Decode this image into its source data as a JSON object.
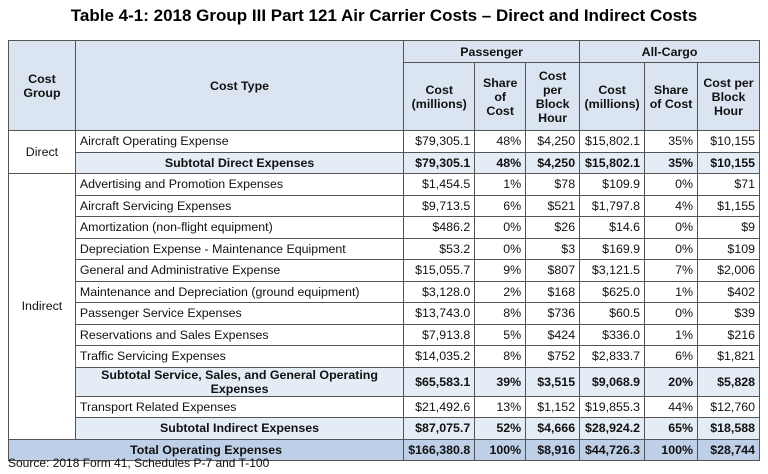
{
  "title": "Table 4-1: 2018 Group III Part 121 Air Carrier Costs – Direct and Indirect Costs",
  "headers": {
    "cost_group": "Cost Group",
    "cost_type": "Cost Type",
    "passenger": "Passenger",
    "all_cargo": "All-Cargo",
    "cost": "Cost (millions)",
    "share": "Share of Cost",
    "cpbh": "Cost per Block Hour"
  },
  "groups": {
    "direct": "Direct",
    "indirect": "Indirect"
  },
  "rows": [
    {
      "type": "Aircraft Operating Expense",
      "v": [
        "$79,305.1",
        "48%",
        "$4,250",
        "$15,802.1",
        "35%",
        "$10,155"
      ]
    },
    {
      "type": "Subtotal Direct Expenses",
      "v": [
        "$79,305.1",
        "48%",
        "$4,250",
        "$15,802.1",
        "35%",
        "$10,155"
      ]
    },
    {
      "type": "Advertising and Promotion Expenses",
      "v": [
        "$1,454.5",
        "1%",
        "$78",
        "$109.9",
        "0%",
        "$71"
      ]
    },
    {
      "type": "Aircraft Servicing Expenses",
      "v": [
        "$9,713.5",
        "6%",
        "$521",
        "$1,797.8",
        "4%",
        "$1,155"
      ]
    },
    {
      "type": "Amortization (non-flight equipment)",
      "v": [
        "$486.2",
        "0%",
        "$26",
        "$14.6",
        "0%",
        "$9"
      ]
    },
    {
      "type": "Depreciation Expense - Maintenance Equipment",
      "v": [
        "$53.2",
        "0%",
        "$3",
        "$169.9",
        "0%",
        "$109"
      ]
    },
    {
      "type": "General and Administrative Expense",
      "v": [
        "$15,055.7",
        "9%",
        "$807",
        "$3,121.5",
        "7%",
        "$2,006"
      ]
    },
    {
      "type": "Maintenance and Depreciation (ground equipment)",
      "v": [
        "$3,128.0",
        "2%",
        "$168",
        "$625.0",
        "1%",
        "$402"
      ]
    },
    {
      "type": "Passenger Service Expenses",
      "v": [
        "$13,743.0",
        "8%",
        "$736",
        "$60.5",
        "0%",
        "$39"
      ]
    },
    {
      "type": "Reservations and Sales Expenses",
      "v": [
        "$7,913.8",
        "5%",
        "$424",
        "$336.0",
        "1%",
        "$216"
      ]
    },
    {
      "type": "Traffic Servicing Expenses",
      "v": [
        "$14,035.2",
        "8%",
        "$752",
        "$2,833.7",
        "6%",
        "$1,821"
      ]
    },
    {
      "type": "Subtotal Service, Sales, and General Operating Expenses",
      "v": [
        "$65,583.1",
        "39%",
        "$3,515",
        "$9,068.9",
        "20%",
        "$5,828"
      ]
    },
    {
      "type": "Transport Related Expenses",
      "v": [
        "$21,492.6",
        "13%",
        "$1,152",
        "$19,855.3",
        "44%",
        "$12,760"
      ]
    },
    {
      "type": "Subtotal Indirect Expenses",
      "v": [
        "$87,075.7",
        "52%",
        "$4,666",
        "$28,924.2",
        "65%",
        "$18,588"
      ]
    },
    {
      "type": "Total Operating Expenses",
      "v": [
        "$166,380.8",
        "100%",
        "$8,916",
        "$44,726.3",
        "100%",
        "$28,744"
      ]
    }
  ],
  "source": "Source: 2018 Form 41, Schedules P-7 and T-100"
}
